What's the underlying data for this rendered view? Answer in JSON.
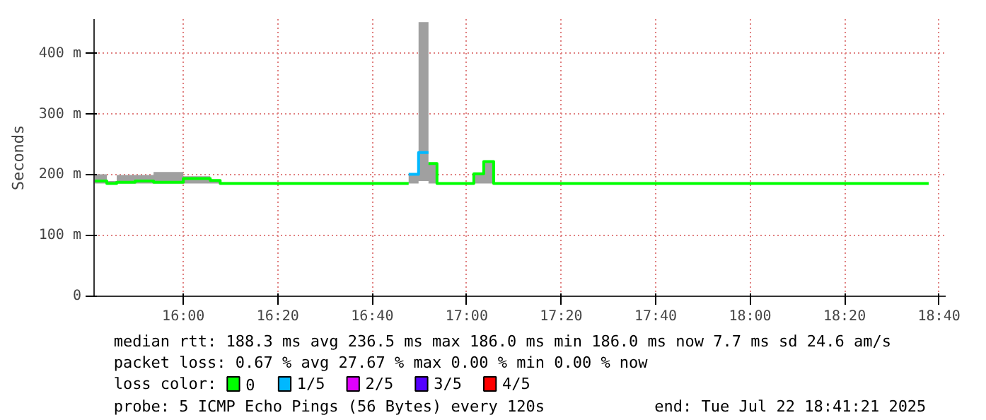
{
  "chart_data": {
    "type": "step",
    "ylabel": "Seconds",
    "legend_title": "loss color:",
    "legend": "bottom",
    "grid": true,
    "x": [
      15.685,
      15.73,
      15.765,
      15.83,
      15.895,
      16.0,
      16.095,
      16.13,
      16.795,
      16.83,
      16.865,
      16.895,
      17.025,
      17.06,
      17.095,
      18.63
    ],
    "xlim": [
      15.685,
      18.69
    ],
    "xticks": [
      {
        "value": 16.0,
        "label": "16:00"
      },
      {
        "value": 16.3333,
        "label": "16:20"
      },
      {
        "value": 16.6667,
        "label": "16:40"
      },
      {
        "value": 17.0,
        "label": "17:00"
      },
      {
        "value": 17.3333,
        "label": "17:20"
      },
      {
        "value": 17.6667,
        "label": "17:40"
      },
      {
        "value": 18.0,
        "label": "18:00"
      },
      {
        "value": 18.3333,
        "label": "18:20"
      },
      {
        "value": 18.6667,
        "label": "18:40"
      }
    ],
    "ylim": [
      0,
      457
    ],
    "yticks": [
      0,
      {
        "value": 100,
        "label": "100 m"
      },
      {
        "value": 200,
        "label": "200 m"
      },
      {
        "value": 300,
        "label": "300 m"
      },
      {
        "value": 400,
        "label": "400 m"
      }
    ],
    "series": [
      {
        "name": "0",
        "color": "#00ff00",
        "values": [
          190,
          186,
          188,
          190,
          188,
          194,
          191,
          186,
          186,
          null,
          219,
          186,
          202,
          222,
          186,
          186
        ],
        "lower": [
          186,
          186,
          186,
          186,
          186,
          186,
          186,
          186,
          186,
          190,
          186,
          186,
          186,
          186,
          186,
          186
        ],
        "upper": [
          201,
          190,
          200,
          200,
          205,
          198,
          190,
          188,
          201,
          452,
          219,
          186,
          202,
          222,
          186,
          186
        ]
      },
      {
        "name": "1/5",
        "color": "#00b8ff",
        "x": [
          16.795,
          16.83,
          16.865
        ],
        "values": [
          201,
          237,
          237
        ]
      },
      {
        "name": "2/5",
        "color": "#e000ff",
        "values": [
          null,
          null,
          null,
          null,
          null,
          null,
          null,
          null,
          null,
          null,
          null,
          null,
          null,
          null,
          null,
          null
        ]
      },
      {
        "name": "3/5",
        "color": "#5500ff",
        "values": [
          null,
          null,
          null,
          null,
          null,
          null,
          null,
          null,
          null,
          null,
          null,
          null,
          null,
          null,
          null,
          null
        ]
      },
      {
        "name": "4/5",
        "color": "#ff0000",
        "values": [
          null,
          null,
          null,
          null,
          null,
          null,
          null,
          null,
          null,
          null,
          null,
          null,
          null,
          null,
          null,
          null
        ]
      }
    ],
    "annotations": [
      "median rtt:  188.3 ms avg  236.5 ms max  186.0 ms min  186.0 ms now  7.7 ms sd  24.6   am/s",
      "packet loss: 0.67 % avg  27.67 % max  0.00 % min  0.00 % now",
      "probe:       5 ICMP Echo Pings (56 Bytes) every 120s",
      "end: Tue Jul 22 18:41:21 2025"
    ]
  }
}
